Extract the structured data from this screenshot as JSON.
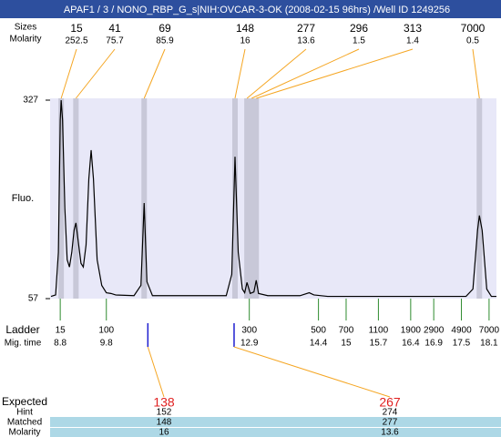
{
  "chart_data": {
    "type": "line",
    "title": "APAF1 / 3 / NONO_RBP_G_s|NIH:OVCAR-3-OK (2008-02-15 96hrs) /Well ID 1249256",
    "y_label": "Fluo.",
    "peak_size_label": "Sizes",
    "peak_molarity_label": "Molarity",
    "ladder_label": "Ladder",
    "mig_time_label": "Mig. time",
    "expected_label": "Expected",
    "hint_label": "Hint",
    "matched_label": "Matched",
    "expected_molarity_label": "Molarity",
    "color": "#000000",
    "xlim": [
      8.58,
      18.26
    ],
    "ylim": [
      57,
      327
    ],
    "yticks": [
      57,
      327
    ],
    "x": [
      8.6,
      8.7,
      8.76,
      8.8,
      8.82,
      8.85,
      8.9,
      8.95,
      9.0,
      9.05,
      9.1,
      9.14,
      9.18,
      9.25,
      9.3,
      9.36,
      9.42,
      9.47,
      9.52,
      9.6,
      9.7,
      9.8,
      9.9,
      10.0,
      10.4,
      10.55,
      10.62,
      10.68,
      10.8,
      12.4,
      12.52,
      12.59,
      12.66,
      12.75,
      12.8,
      12.85,
      12.92,
      13.0,
      13.05,
      13.1,
      13.3,
      14.0,
      14.2,
      14.3,
      14.6,
      17.6,
      17.75,
      17.85,
      17.89,
      17.95,
      18.05,
      18.15,
      18.26
    ],
    "values": [
      60,
      62,
      120,
      300,
      327,
      300,
      180,
      110,
      100,
      120,
      150,
      160,
      140,
      105,
      100,
      130,
      220,
      259,
      220,
      110,
      75,
      65,
      64,
      62,
      61,
      75,
      187,
      80,
      61,
      61,
      90,
      250,
      120,
      70,
      65,
      79,
      64,
      66,
      82,
      64,
      61,
      61,
      65,
      62,
      60,
      60,
      70,
      150,
      170,
      150,
      70,
      60,
      60
    ],
    "peaks": {
      "sizes": [
        15,
        41,
        69,
        148,
        277,
        296,
        313,
        7000
      ],
      "molarity": [
        252.5,
        75.7,
        85.9,
        16,
        13.6,
        1.5,
        1.4,
        0.5
      ],
      "times": [
        8.82,
        9.14,
        10.62,
        12.59,
        12.85,
        12.95,
        13.05,
        17.89
      ],
      "color": "#f5a623",
      "band_color": "#c8c8d8"
    },
    "ladder": {
      "sizes": [
        15,
        100,
        300,
        500,
        700,
        1100,
        1900,
        2900,
        4900,
        7000
      ],
      "times": [
        8.8,
        9.8,
        12.9,
        14.4,
        15,
        15.7,
        16.4,
        16.9,
        17.5,
        18.1
      ],
      "color": "#2e8b2e"
    },
    "expected": {
      "sizes": [
        138,
        267
      ],
      "hint": [
        152,
        274
      ],
      "matched": [
        148,
        277
      ],
      "molarity": [
        16,
        13.6
      ],
      "times": [
        10.7,
        12.57
      ],
      "color": "#e02020",
      "marker_color": "#1f1fd0"
    }
  }
}
